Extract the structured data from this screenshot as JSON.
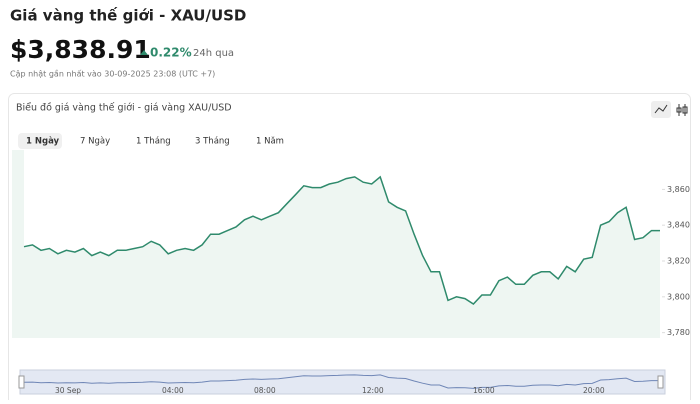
{
  "header": {
    "title": "Giá vàng thế giới - XAU/USD",
    "price": "$3,838.91",
    "change": "0.22%",
    "period": "24h qua",
    "updated": "Cập nhật gần nhất vào 30-09-2025 23:08 (UTC +7)"
  },
  "tabs": [
    "1 Ngày",
    "7 Ngày",
    "1 Tháng",
    "3 Tháng",
    "1 Năm"
  ],
  "chart_data": {
    "type": "area",
    "title": "Biểu đồ giá vàng thế giới - giá vàng XAU/USD",
    "color": "#2f8a6c",
    "values": [
      3828,
      3829,
      3826,
      3827,
      3824,
      3826,
      3825,
      3827,
      3823,
      3825,
      3823,
      3826,
      3826,
      3827,
      3828,
      3831,
      3829,
      3824,
      3826,
      3827,
      3826,
      3829,
      3835,
      3835,
      3837,
      3839,
      3843,
      3845,
      3843,
      3845,
      3847,
      3852,
      3857,
      3862,
      3861,
      3861,
      3863,
      3864,
      3866,
      3867,
      3864,
      3863,
      3867,
      3853,
      3850,
      3848,
      3835,
      3823,
      3814,
      3814,
      3798,
      3800,
      3799,
      3796,
      3801,
      3801,
      3809,
      3811,
      3807,
      3807,
      3812,
      3814,
      3814,
      3810,
      3817,
      3814,
      3821,
      3822,
      3840,
      3842,
      3847,
      3850,
      3832,
      3833,
      3837,
      3837
    ],
    "ylim": [
      3777,
      3882
    ],
    "yticks": [
      {
        "value": 3780,
        "label": "3,780"
      },
      {
        "value": 3800,
        "label": "3,800"
      },
      {
        "value": 3820,
        "label": "3,820"
      },
      {
        "value": 3840,
        "label": "3,840"
      },
      {
        "value": 3860,
        "label": "3,860"
      }
    ],
    "navigator_labels": [
      "30 Sep",
      "04:00",
      "08:00",
      "12:00",
      "16:00",
      "20:00"
    ]
  }
}
